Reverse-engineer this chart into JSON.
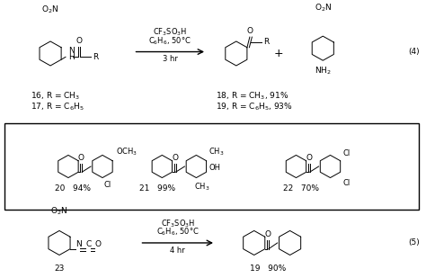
{
  "background_color": "#ffffff",
  "figsize": [
    4.74,
    3.09
  ],
  "dpi": 100,
  "eq4_label": "(4)",
  "eq5_label": "(5)",
  "compound16": "16, R = CH$_3$",
  "compound17": "17, R = C$_6$H$_5$",
  "compound18": "18, R = CH$_3$, 91%",
  "compound19_eq4": "19, R = C$_6$H$_5$, 93%",
  "compound19_eq5": "19   90%",
  "compound20_label": "20   94%",
  "compound21_label": "21   99%",
  "compound22_label": "22   70%",
  "compound23_label": "23",
  "no2": "O$_2$N",
  "nh2": "NH$_2$",
  "och3": "OCH$_3$",
  "ch3": "CH$_3$",
  "oh": "OH",
  "cl": "Cl",
  "o": "O",
  "r": "R",
  "n": "N",
  "h": "H",
  "plus": "+",
  "arrow_cond4": "CF$_3$SO$_3$H",
  "arrow_cond4b": "C$_6$H$_6$, 50°C",
  "arrow_cond4c": "3 hr",
  "arrow_cond5": "CF$_3$SO$_3$H",
  "arrow_cond5b": "C$_6$H$_6$, 50°C",
  "arrow_cond5c": "4 hr"
}
